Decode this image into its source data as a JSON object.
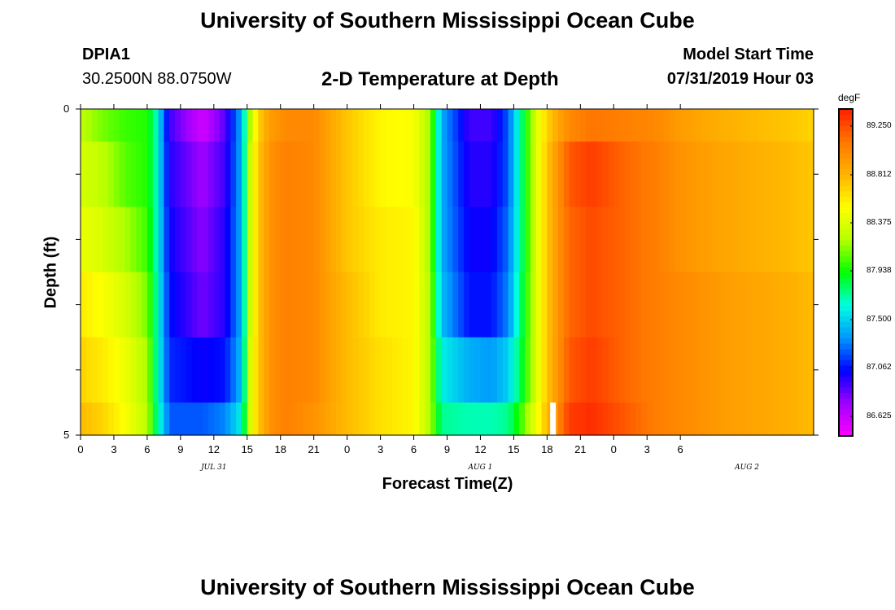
{
  "header": {
    "title": "University of Southern Mississippi Ocean Cube",
    "station": "DPIA1",
    "coordinates": "30.2500N 88.0750W",
    "plot_title": "2-D Temperature at Depth",
    "model_start_label": "Model Start Time",
    "model_start_value": "07/31/2019 Hour 03"
  },
  "footer": {
    "title": "University of Southern Mississippi Ocean Cube"
  },
  "colorbar": {
    "unit": "degF",
    "labels": [
      "89.250",
      "88.812",
      "88.375",
      "87.938",
      "87.500",
      "87.062",
      "86.625"
    ],
    "min": 86.4,
    "max": 89.5,
    "colors": [
      "#ff00ff",
      "#a000ff",
      "#0000ff",
      "#0096ff",
      "#00ffe0",
      "#00ff00",
      "#b4ff00",
      "#ffff00",
      "#ffb400",
      "#ff7800",
      "#ff1e00"
    ]
  },
  "chart_data": {
    "type": "heatmap",
    "title": "2-D Temperature at Depth",
    "xlabel": "Forecast Time(Z)",
    "ylabel": "Depth (ft)",
    "x_hours_from_start": [
      0,
      66
    ],
    "x_tick_labels": [
      "0",
      "3",
      "6",
      "9",
      "12",
      "15",
      "18",
      "21",
      "0",
      "3",
      "6",
      "9",
      "12",
      "15",
      "18",
      "21",
      "0",
      "3",
      "6"
    ],
    "date_labels": [
      {
        "label": "JUL 31",
        "hour": 12
      },
      {
        "label": "AUG 1",
        "hour": 36
      },
      {
        "label": "AUG 2",
        "hour": 60
      }
    ],
    "y_ticks": [
      0,
      1,
      2,
      3,
      4,
      5
    ],
    "y_tick_labels": [
      "0",
      "",
      "",
      "",
      "",
      "5"
    ],
    "ylim": [
      0,
      5
    ],
    "depth_rows_ft": [
      0.25,
      1.0,
      2.0,
      3.0,
      4.0,
      4.75
    ],
    "temperature_keyframes": {
      "hours": [
        0,
        2,
        4,
        6,
        6.8,
        8,
        11,
        13,
        14.5,
        15.3,
        16,
        17,
        18.5,
        21,
        24,
        27,
        30,
        31.5,
        32.5,
        35,
        37,
        38.5,
        39.5,
        41,
        42,
        43,
        44,
        46,
        49,
        52,
        54,
        56,
        58,
        61,
        64,
        66
      ],
      "rows": [
        [
          88.3,
          88.15,
          88.05,
          88.0,
          87.7,
          86.9,
          86.55,
          86.85,
          87.4,
          88.3,
          88.75,
          89.0,
          89.1,
          89.1,
          88.8,
          88.6,
          88.55,
          88.2,
          87.4,
          86.9,
          86.9,
          87.2,
          87.7,
          88.4,
          88.75,
          88.95,
          89.1,
          89.2,
          89.15,
          89.1,
          89.0,
          88.95,
          88.9,
          88.85,
          88.8,
          88.75
        ],
        [
          88.4,
          88.3,
          88.1,
          88.0,
          87.7,
          86.95,
          86.7,
          86.9,
          87.4,
          88.4,
          88.8,
          89.05,
          89.15,
          89.1,
          88.8,
          88.6,
          88.55,
          88.2,
          87.4,
          86.95,
          86.95,
          87.2,
          87.7,
          88.4,
          88.8,
          89.05,
          89.3,
          89.4,
          89.25,
          89.15,
          89.05,
          89.0,
          88.95,
          88.9,
          88.85,
          88.8
        ],
        [
          88.5,
          88.4,
          88.25,
          88.05,
          87.7,
          87.0,
          86.75,
          86.95,
          87.4,
          88.4,
          88.8,
          89.05,
          89.15,
          89.1,
          88.8,
          88.65,
          88.6,
          88.2,
          87.4,
          87.0,
          87.0,
          87.25,
          87.7,
          88.4,
          88.8,
          89.05,
          89.25,
          89.35,
          89.25,
          89.15,
          89.05,
          89.0,
          88.95,
          88.9,
          88.85,
          88.8
        ],
        [
          88.65,
          88.55,
          88.4,
          88.15,
          87.75,
          87.05,
          86.8,
          86.95,
          87.4,
          88.4,
          88.8,
          89.05,
          89.15,
          89.1,
          88.85,
          88.65,
          88.6,
          88.25,
          87.45,
          87.05,
          87.05,
          87.3,
          87.75,
          88.4,
          88.8,
          89.05,
          89.25,
          89.35,
          89.25,
          89.15,
          89.1,
          89.05,
          89.0,
          88.95,
          88.9,
          88.85
        ],
        [
          88.75,
          88.65,
          88.5,
          88.25,
          87.75,
          87.1,
          87.0,
          87.05,
          87.45,
          88.45,
          88.8,
          89.05,
          89.15,
          89.1,
          88.85,
          88.7,
          88.6,
          88.25,
          87.6,
          87.4,
          87.35,
          87.5,
          87.8,
          88.4,
          88.8,
          89.05,
          89.3,
          89.4,
          89.25,
          89.15,
          89.1,
          89.05,
          89.0,
          88.95,
          88.9,
          88.85
        ],
        [
          88.85,
          88.75,
          88.55,
          88.3,
          87.8,
          87.2,
          87.2,
          87.3,
          87.6,
          88.45,
          88.8,
          89.05,
          89.15,
          89.05,
          88.85,
          88.7,
          88.6,
          88.25,
          87.75,
          87.7,
          87.7,
          87.75,
          88.0,
          88.5,
          88.85,
          89.1,
          89.4,
          89.45,
          89.3,
          89.15,
          89.1,
          89.05,
          89.0,
          88.95,
          88.9,
          88.85
        ]
      ]
    },
    "missing_value_hour": 42.5
  }
}
